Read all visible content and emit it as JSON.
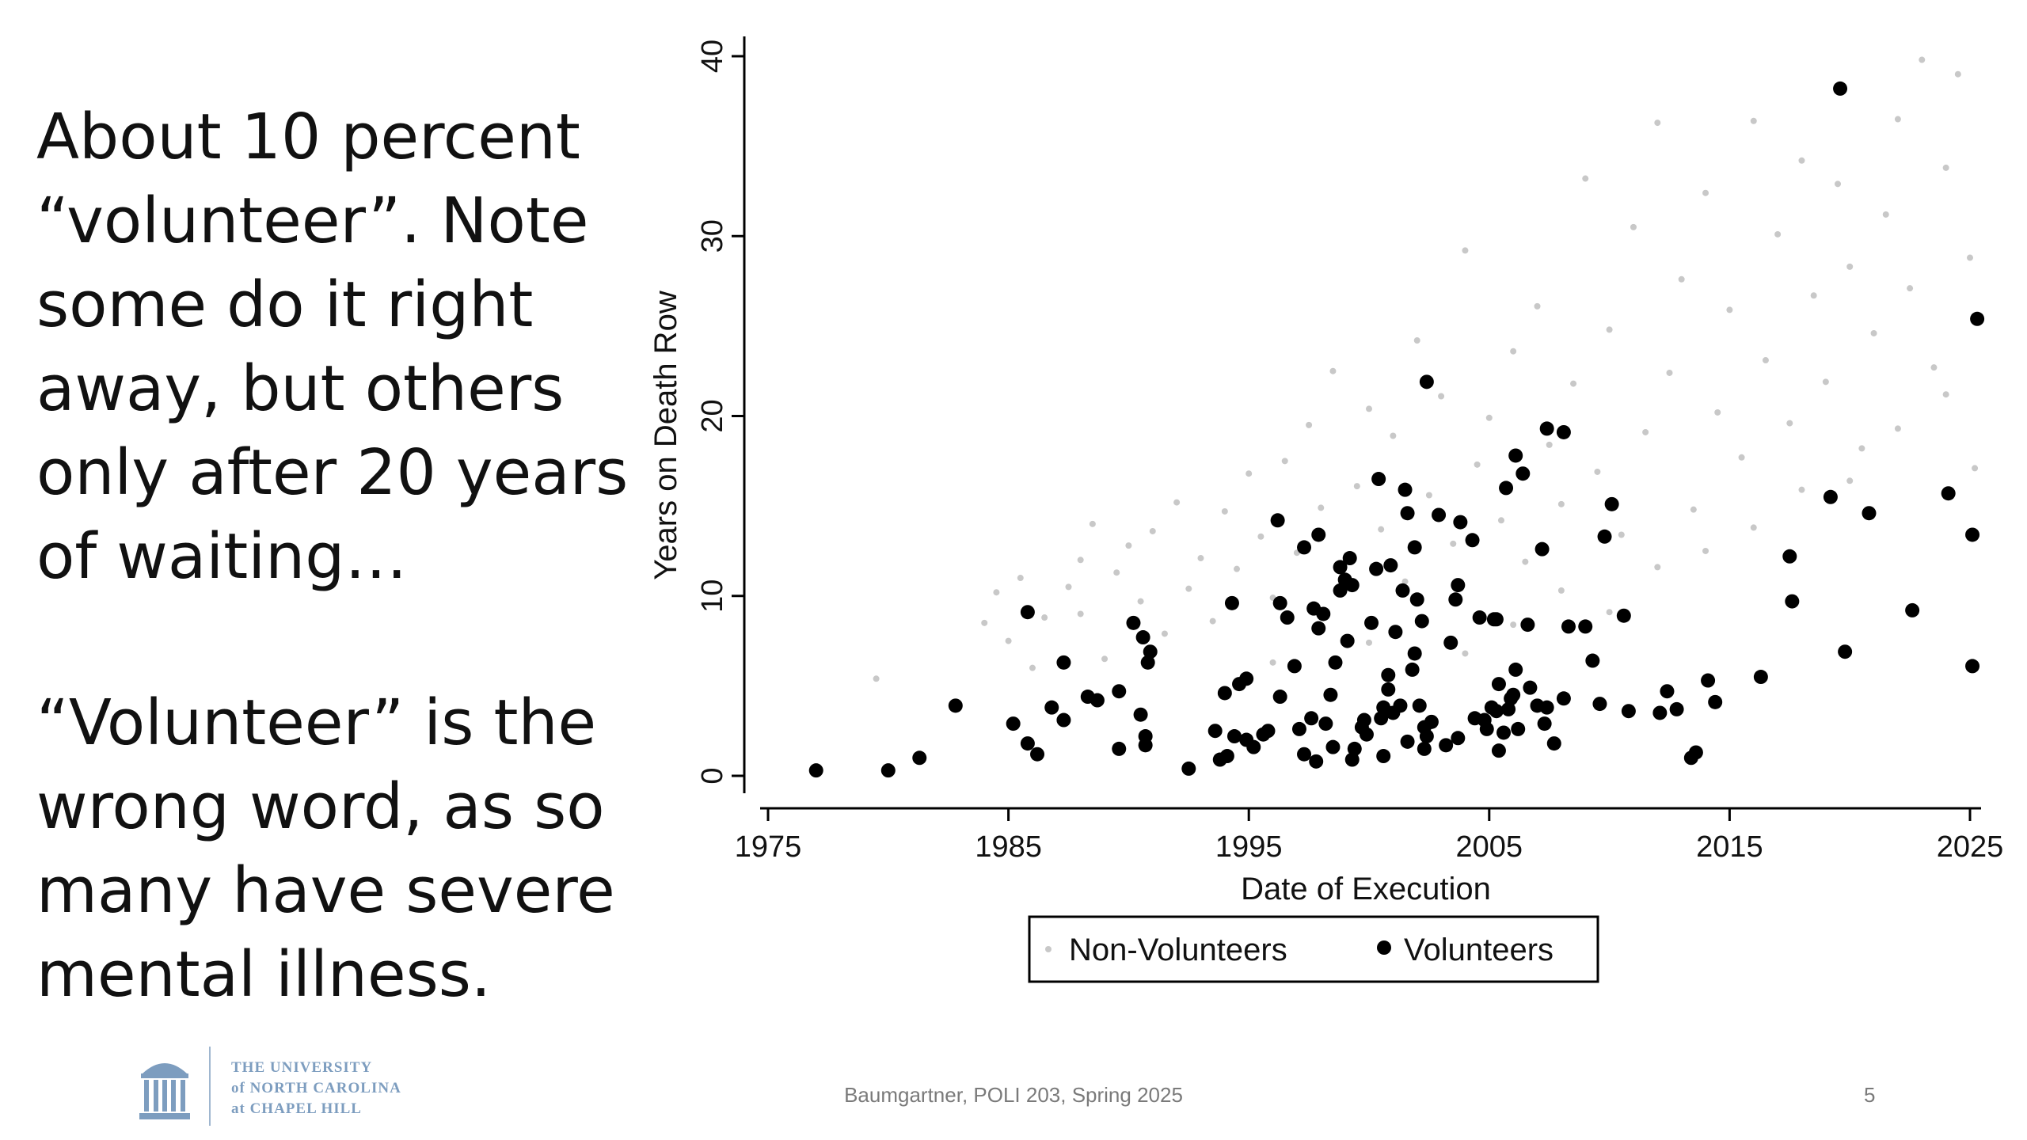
{
  "slide": {
    "paragraphs": [
      "About 10 percent “volunteer”. Note some do it right away, but others only after 20 years of waiting…",
      "“Volunteer” is the wrong word, as so many have severe mental illness."
    ]
  },
  "footer": {
    "citation": "Baumgartner, POLI 203, Spring 2025",
    "page_number": "5"
  },
  "logo": {
    "lines": [
      "THE UNIVERSITY",
      "of NORTH CAROLINA",
      "at CHAPEL HILL"
    ],
    "color": "#7d9dbf"
  },
  "chart_data": {
    "type": "scatter",
    "xlabel": "Date of Execution",
    "ylabel": "Years on Death Row",
    "xlim": [
      1975,
      2026
    ],
    "ylim": [
      0,
      41
    ],
    "xticks": [
      1975,
      1985,
      1995,
      2005,
      2015,
      2025
    ],
    "yticks": [
      0,
      10,
      20,
      30,
      40
    ],
    "legend_position": "bottom-center",
    "grid": false,
    "series": [
      {
        "name": "Non-Volunteers",
        "color": "#c8c8c8",
        "marker": "small-dot",
        "points": [
          [
            1979.5,
            5.4
          ],
          [
            1984,
            8.5
          ],
          [
            1984.5,
            10.2
          ],
          [
            1985.5,
            11
          ],
          [
            1985,
            7.5
          ],
          [
            1986,
            6
          ],
          [
            1986.5,
            8.8
          ],
          [
            1987.5,
            10.5
          ],
          [
            1988,
            12
          ],
          [
            1988.5,
            14
          ],
          [
            1988,
            9
          ],
          [
            1989,
            6.5
          ],
          [
            1989.5,
            11.3
          ],
          [
            1990,
            12.8
          ],
          [
            1990.5,
            9.7
          ],
          [
            1991,
            13.6
          ],
          [
            1991.5,
            7.9
          ],
          [
            1992,
            15.2
          ],
          [
            1992.5,
            10.4
          ],
          [
            1993,
            12.1
          ],
          [
            1993.5,
            8.6
          ],
          [
            1994,
            14.7
          ],
          [
            1994.5,
            11.5
          ],
          [
            1995,
            16.8
          ],
          [
            1995.5,
            13.3
          ],
          [
            1996,
            9.9
          ],
          [
            1996.5,
            17.5
          ],
          [
            1997,
            12.4
          ],
          [
            1997.5,
            19.5
          ],
          [
            1998,
            14.9
          ],
          [
            1998.5,
            22.5
          ],
          [
            1999,
            11.1
          ],
          [
            1999.5,
            16.1
          ],
          [
            2000,
            20.4
          ],
          [
            2000.5,
            13.7
          ],
          [
            2001,
            18.9
          ],
          [
            2001.5,
            10.8
          ],
          [
            2002,
            24.2
          ],
          [
            2002.5,
            15.6
          ],
          [
            2003,
            21.1
          ],
          [
            2003.5,
            12.9
          ],
          [
            2004,
            29.2
          ],
          [
            2004.5,
            17.3
          ],
          [
            2005,
            19.9
          ],
          [
            2005.5,
            14.2
          ],
          [
            2006,
            23.6
          ],
          [
            2006.5,
            11.9
          ],
          [
            2007,
            26.1
          ],
          [
            2007.5,
            18.4
          ],
          [
            2008,
            15.1
          ],
          [
            2008.5,
            21.8
          ],
          [
            2009,
            33.2
          ],
          [
            2009.5,
            16.9
          ],
          [
            2010,
            24.8
          ],
          [
            2010.5,
            13.4
          ],
          [
            2011,
            30.5
          ],
          [
            2011.5,
            19.1
          ],
          [
            2012,
            36.3
          ],
          [
            2012.5,
            22.4
          ],
          [
            2013,
            27.6
          ],
          [
            2013.5,
            14.8
          ],
          [
            2014,
            32.4
          ],
          [
            2014.5,
            20.2
          ],
          [
            2015,
            25.9
          ],
          [
            2015.5,
            17.7
          ],
          [
            2016,
            36.4
          ],
          [
            2016.5,
            23.1
          ],
          [
            2017,
            30.1
          ],
          [
            2017.5,
            19.6
          ],
          [
            2018,
            34.2
          ],
          [
            2018.5,
            26.7
          ],
          [
            2019,
            21.9
          ],
          [
            2019.5,
            32.9
          ],
          [
            2020,
            28.3
          ],
          [
            2020.5,
            18.2
          ],
          [
            2021,
            24.6
          ],
          [
            2021.5,
            31.2
          ],
          [
            2022,
            36.5
          ],
          [
            2022.5,
            27.1
          ],
          [
            2023,
            39.8
          ],
          [
            2023.5,
            22.7
          ],
          [
            2024,
            33.8
          ],
          [
            2024.5,
            39
          ],
          [
            2025,
            28.8
          ],
          [
            2025.2,
            17.1
          ],
          [
            1996,
            6.3
          ],
          [
            1998,
            8.1
          ],
          [
            2000,
            7.4
          ],
          [
            2002,
            9.6
          ],
          [
            2004,
            6.8
          ],
          [
            2006,
            8.4
          ],
          [
            2008,
            10.3
          ],
          [
            2010,
            9.1
          ],
          [
            2012,
            11.6
          ],
          [
            2014,
            12.5
          ],
          [
            2016,
            13.8
          ],
          [
            2018,
            15.9
          ],
          [
            2020,
            16.4
          ],
          [
            2022,
            19.3
          ],
          [
            2024,
            21.2
          ]
        ]
      },
      {
        "name": "Volunteers",
        "color": "#000000",
        "marker": "large-dot",
        "points": [
          [
            1977,
            0.3
          ],
          [
            1980,
            0.3
          ],
          [
            1981.3,
            1
          ],
          [
            1982.8,
            3.9
          ],
          [
            1985.8,
            9.1
          ],
          [
            1985.2,
            2.9
          ],
          [
            1986.2,
            1.2
          ],
          [
            1985.8,
            1.8
          ],
          [
            1986.8,
            3.8
          ],
          [
            1987.3,
            6.3
          ],
          [
            1987.3,
            3.1
          ],
          [
            1988.3,
            4.4
          ],
          [
            1988.7,
            4.2
          ],
          [
            1989.6,
            1.5
          ],
          [
            1989.6,
            4.7
          ],
          [
            1990.2,
            8.5
          ],
          [
            1990.5,
            3.4
          ],
          [
            1990.7,
            2.2
          ],
          [
            1990.7,
            1.7
          ],
          [
            1990.6,
            7.7
          ],
          [
            1990.8,
            6.3
          ],
          [
            1990.9,
            6.9
          ],
          [
            1992.5,
            0.4
          ],
          [
            1993.6,
            2.5
          ],
          [
            1993.8,
            0.9
          ],
          [
            1994.1,
            1.1
          ],
          [
            1994,
            4.6
          ],
          [
            1994.3,
            9.6
          ],
          [
            1994.4,
            2.2
          ],
          [
            1994.6,
            5.1
          ],
          [
            1994.9,
            5.4
          ],
          [
            1994.9,
            2
          ],
          [
            1995.2,
            1.6
          ],
          [
            1995.6,
            2.3
          ],
          [
            1995.8,
            2.5
          ],
          [
            1996.2,
            14.2
          ],
          [
            1996.3,
            9.6
          ],
          [
            1996.3,
            4.4
          ],
          [
            1996.6,
            8.8
          ],
          [
            1996.9,
            6.1
          ],
          [
            1997.1,
            2.6
          ],
          [
            1997.3,
            1.2
          ],
          [
            1997.3,
            12.7
          ],
          [
            1997.6,
            3.2
          ],
          [
            1997.7,
            9.3
          ],
          [
            1997.8,
            0.8
          ],
          [
            1997.9,
            8.2
          ],
          [
            1997.9,
            13.4
          ],
          [
            1998.1,
            9
          ],
          [
            1998.2,
            2.9
          ],
          [
            1998.4,
            4.5
          ],
          [
            1998.5,
            1.6
          ],
          [
            1998.6,
            6.3
          ],
          [
            1998.8,
            10.3
          ],
          [
            1998.8,
            11.6
          ],
          [
            1999,
            10.9
          ],
          [
            1999.1,
            7.5
          ],
          [
            1999.2,
            12.1
          ],
          [
            1999.3,
            0.9
          ],
          [
            1999.3,
            10.6
          ],
          [
            1999.4,
            1.5
          ],
          [
            1999.7,
            2.7
          ],
          [
            1999.8,
            3.1
          ],
          [
            1999.9,
            2.3
          ],
          [
            2000.1,
            8.5
          ],
          [
            2000.3,
            11.5
          ],
          [
            2000.4,
            16.5
          ],
          [
            2000.5,
            3.2
          ],
          [
            2000.6,
            1.1
          ],
          [
            2000.6,
            3.8
          ],
          [
            2000.8,
            5.6
          ],
          [
            2000.8,
            4.8
          ],
          [
            2000.9,
            11.7
          ],
          [
            2001,
            3.5
          ],
          [
            2001.1,
            8
          ],
          [
            2001.3,
            3.9
          ],
          [
            2001.4,
            10.3
          ],
          [
            2001.5,
            15.9
          ],
          [
            2001.6,
            1.9
          ],
          [
            2001.6,
            14.6
          ],
          [
            2001.8,
            5.9
          ],
          [
            2001.9,
            12.7
          ],
          [
            2001.9,
            6.8
          ],
          [
            2002,
            9.8
          ],
          [
            2002.1,
            3.9
          ],
          [
            2002.2,
            8.6
          ],
          [
            2002.3,
            1.5
          ],
          [
            2002.3,
            2.7
          ],
          [
            2002.4,
            21.9
          ],
          [
            2002.4,
            2.2
          ],
          [
            2002.6,
            3
          ],
          [
            2002.9,
            14.5
          ],
          [
            2003.2,
            1.7
          ],
          [
            2003.4,
            7.4
          ],
          [
            2003.6,
            9.8
          ],
          [
            2003.7,
            10.6
          ],
          [
            2003.7,
            2.1
          ],
          [
            2003.8,
            14.1
          ],
          [
            2004.3,
            13.1
          ],
          [
            2004.4,
            3.2
          ],
          [
            2004.6,
            8.8
          ],
          [
            2004.8,
            3.1
          ],
          [
            2004.9,
            2.6
          ],
          [
            2005.1,
            3.8
          ],
          [
            2005.2,
            8.7
          ],
          [
            2005.3,
            3.6
          ],
          [
            2005.3,
            8.7
          ],
          [
            2005.4,
            5.1
          ],
          [
            2005.4,
            1.4
          ],
          [
            2005.6,
            2.4
          ],
          [
            2005.7,
            16
          ],
          [
            2005.8,
            3.7
          ],
          [
            2005.9,
            4.3
          ],
          [
            2006,
            4.5
          ],
          [
            2006.1,
            17.8
          ],
          [
            2006.1,
            5.9
          ],
          [
            2006.2,
            2.6
          ],
          [
            2006.4,
            16.8
          ],
          [
            2006.6,
            8.4
          ],
          [
            2006.7,
            4.9
          ],
          [
            2007,
            3.9
          ],
          [
            2007.2,
            12.6
          ],
          [
            2007.3,
            2.9
          ],
          [
            2007.4,
            19.3
          ],
          [
            2007.4,
            3.8
          ],
          [
            2007.7,
            1.8
          ],
          [
            2008.1,
            19.1
          ],
          [
            2008.1,
            4.3
          ],
          [
            2008.3,
            8.3
          ],
          [
            2009,
            8.3
          ],
          [
            2009.3,
            6.4
          ],
          [
            2009.6,
            4
          ],
          [
            2009.8,
            13.3
          ],
          [
            2010.1,
            15.1
          ],
          [
            2010.6,
            8.9
          ],
          [
            2010.8,
            3.6
          ],
          [
            2012.1,
            3.5
          ],
          [
            2012.4,
            4.7
          ],
          [
            2012.8,
            3.7
          ],
          [
            2013.4,
            1
          ],
          [
            2013.6,
            1.3
          ],
          [
            2014.1,
            5.3
          ],
          [
            2014.4,
            4.1
          ],
          [
            2016.3,
            5.5
          ],
          [
            2017.5,
            12.2
          ],
          [
            2017.6,
            9.7
          ],
          [
            2019.2,
            15.5
          ],
          [
            2019.6,
            38.2
          ],
          [
            2019.8,
            6.9
          ],
          [
            2020.8,
            14.6
          ],
          [
            2022.6,
            9.2
          ],
          [
            2024.1,
            15.7
          ],
          [
            2025.1,
            13.4
          ],
          [
            2025.1,
            6.1
          ],
          [
            2025.3,
            25.4
          ]
        ]
      }
    ]
  }
}
